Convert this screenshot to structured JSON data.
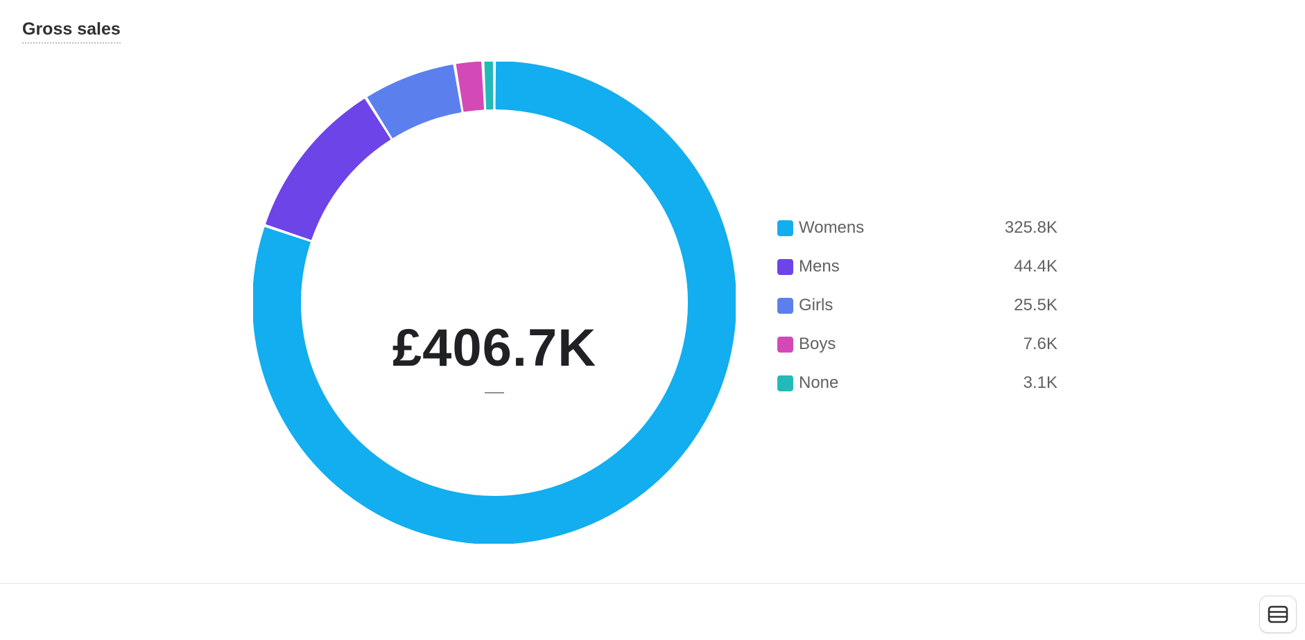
{
  "card": {
    "title": "Gross sales",
    "table_toggle_icon": "table-icon"
  },
  "chart_data": {
    "type": "pie",
    "variant": "donut",
    "title": "Gross sales",
    "center_value": "£406.7K",
    "center_change": "—",
    "legend_position": "right",
    "slices": [
      {
        "label": "Womens",
        "value": 325.8,
        "display": "325.8K",
        "color": "#12aeef"
      },
      {
        "label": "Mens",
        "value": 44.4,
        "display": "44.4K",
        "color": "#6d44e8"
      },
      {
        "label": "Girls",
        "value": 25.5,
        "display": "25.5K",
        "color": "#5b80ee"
      },
      {
        "label": "Boys",
        "value": 7.6,
        "display": "7.6K",
        "color": "#d34ab6"
      },
      {
        "label": "None",
        "value": 3.1,
        "display": "3.1K",
        "color": "#24b9b9"
      }
    ],
    "units": "K",
    "currency": "£"
  }
}
